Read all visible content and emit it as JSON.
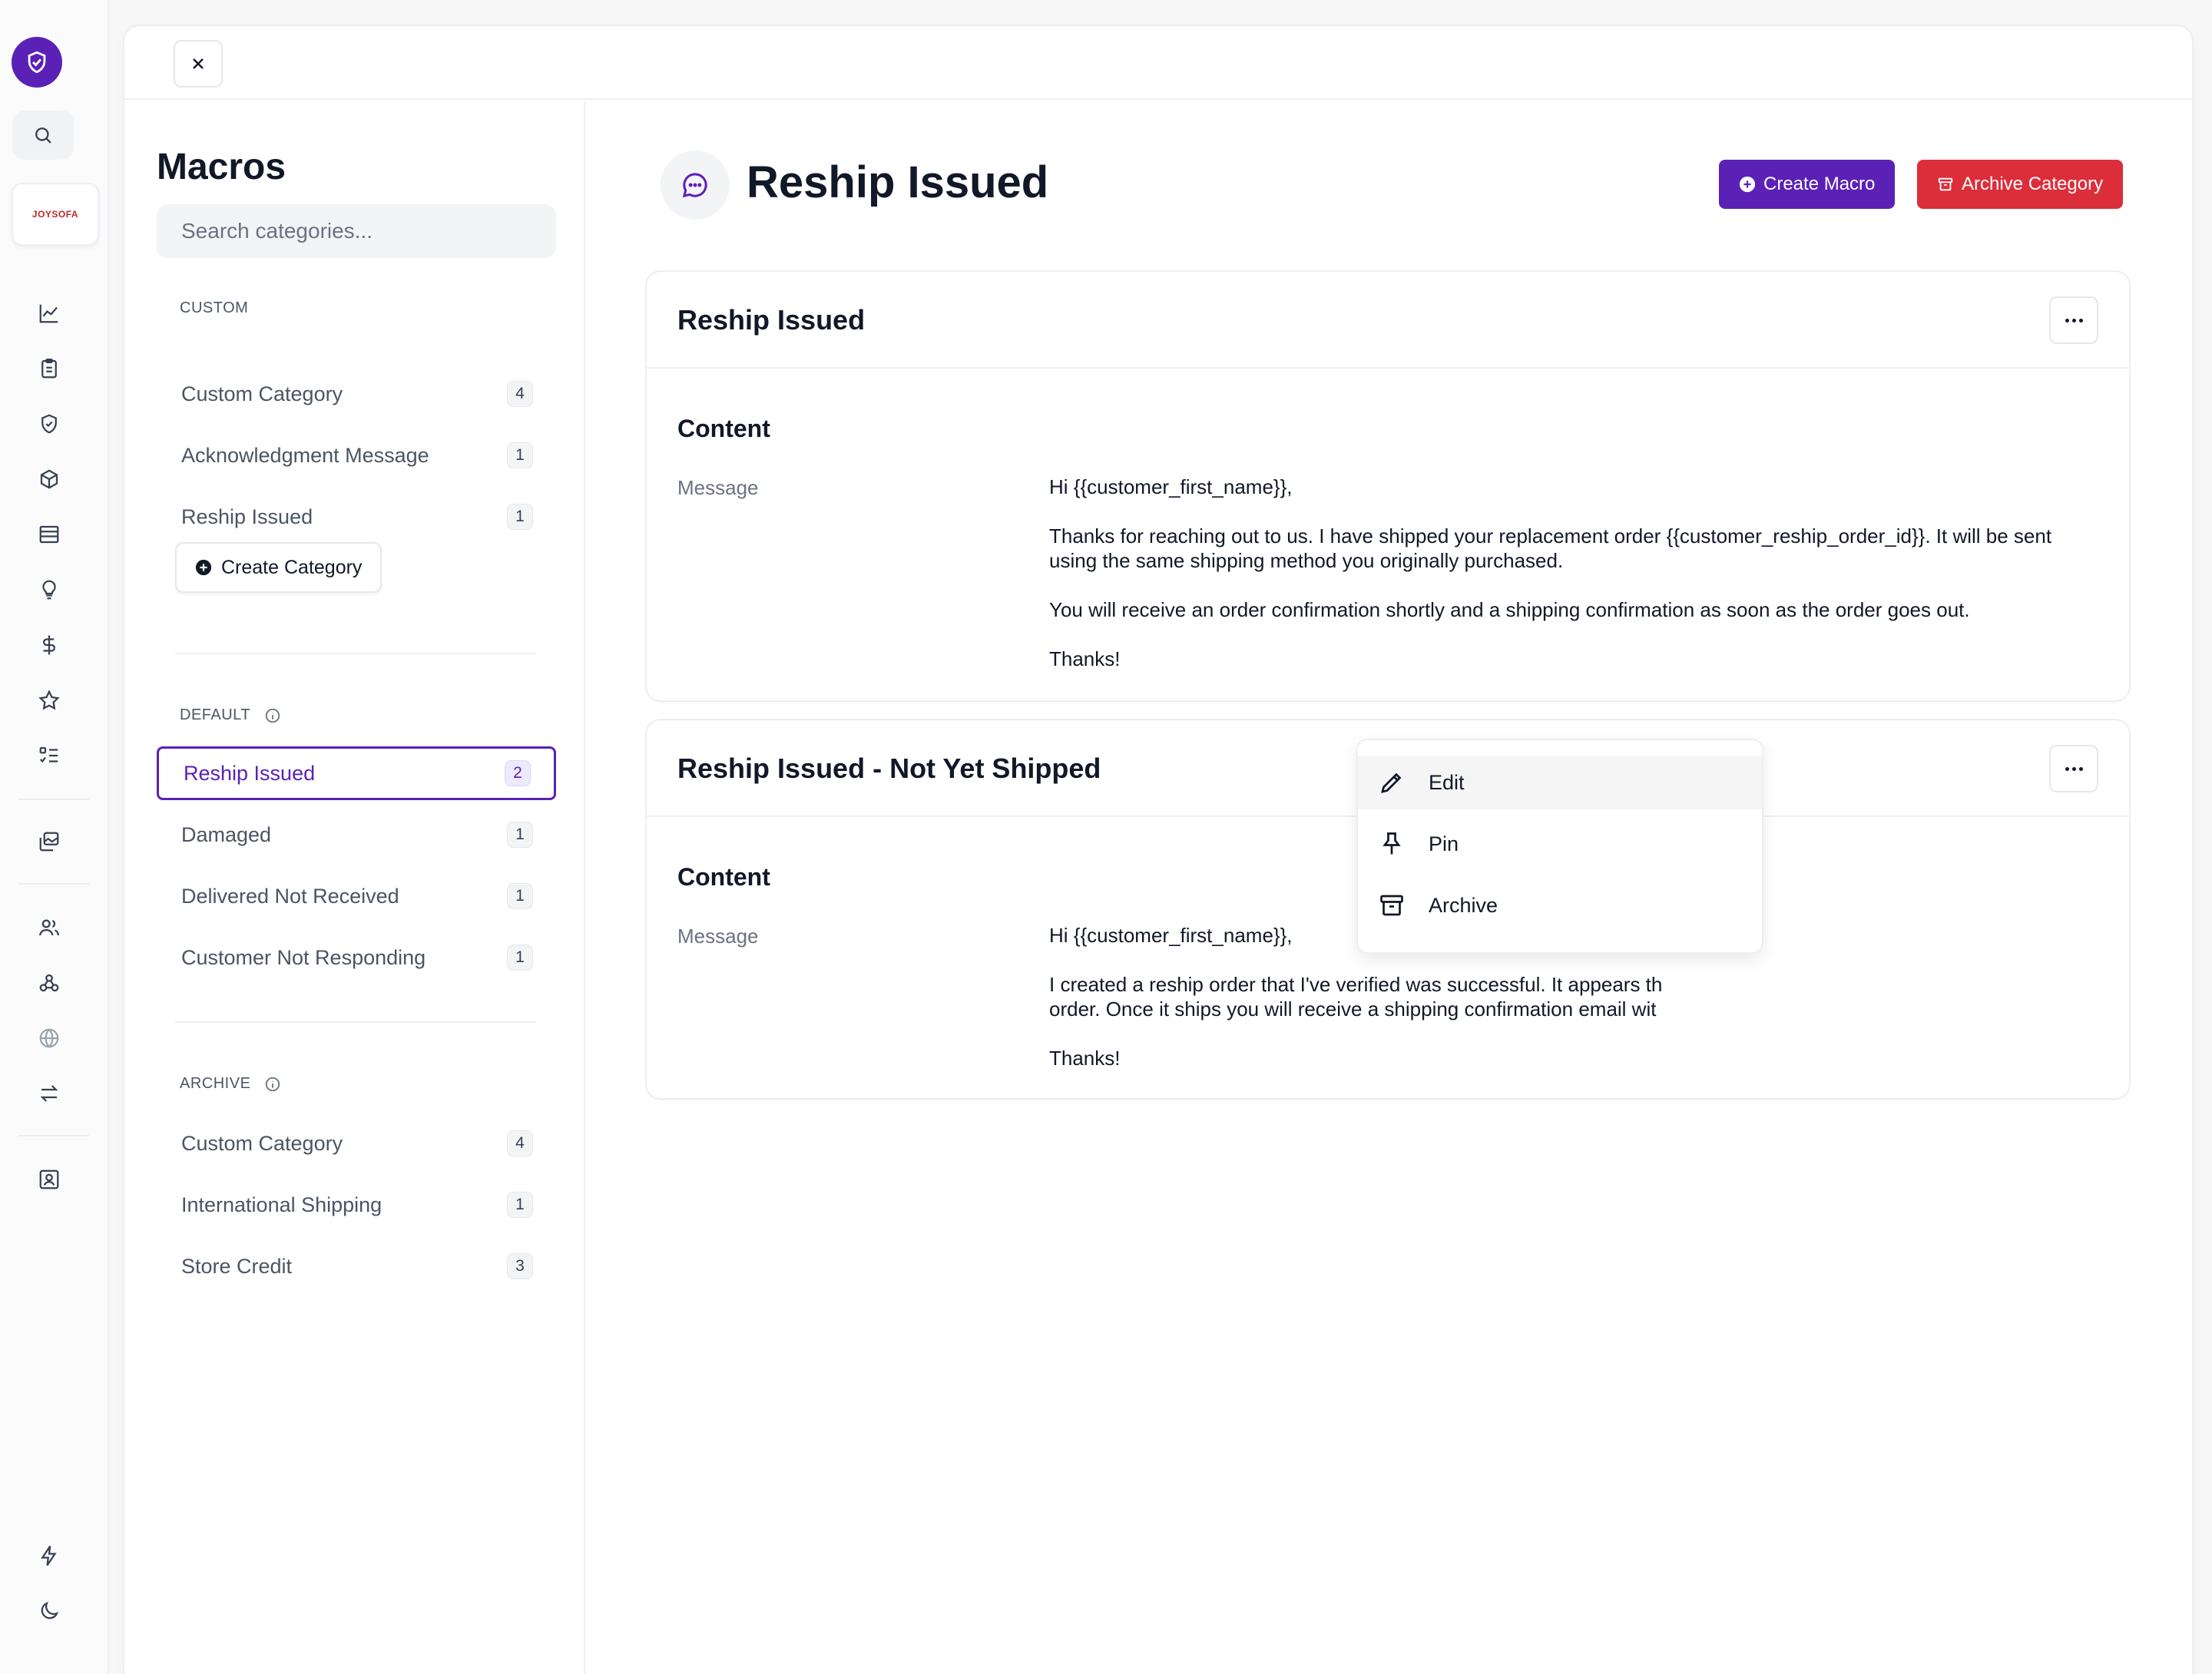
{
  "rail": {
    "brand_text": "JOYSOFA"
  },
  "macros": {
    "title": "Macros",
    "search_placeholder": "Search categories...",
    "custom": {
      "label": "CUSTOM",
      "items": [
        {
          "label": "Custom Category",
          "count": "4"
        },
        {
          "label": "Acknowledgment Message",
          "count": "1"
        },
        {
          "label": "Reship Issued",
          "count": "1"
        }
      ],
      "create_label": "Create Category"
    },
    "default": {
      "label": "DEFAULT",
      "items": [
        {
          "label": "Reship Issued",
          "count": "2"
        },
        {
          "label": "Damaged",
          "count": "1"
        },
        {
          "label": "Delivered Not Received",
          "count": "1"
        },
        {
          "label": "Customer Not Responding",
          "count": "1"
        }
      ]
    },
    "archive": {
      "label": "ARCHIVE",
      "items": [
        {
          "label": "Custom Category",
          "count": "4"
        },
        {
          "label": "International Shipping",
          "count": "1"
        },
        {
          "label": "Store Credit",
          "count": "3"
        }
      ]
    }
  },
  "header": {
    "title": "Reship Issued",
    "create_macro": "Create Macro",
    "archive_category": "Archive Category"
  },
  "cards": [
    {
      "title": "Reship Issued",
      "section": "Content",
      "label": "Message",
      "paragraphs": [
        "Hi {{customer_first_name}},",
        "Thanks for reaching out to us. I have shipped your replacement order {{customer_reship_order_id}}. It will be sent using the same shipping method you originally purchased.",
        "You will receive an order confirmation shortly and a shipping confirmation as soon as the order goes out.",
        "Thanks!"
      ]
    },
    {
      "title": "Reship Issued - Not Yet Shipped",
      "section": "Content",
      "label": "Message",
      "paragraphs": [
        "Hi {{customer_first_name}},",
        "I created a reship order that I've verified was successful. It appears th",
        "order. Once it ships you will receive a shipping confirmation email wit",
        "Thanks!"
      ]
    }
  ],
  "menu": {
    "items": [
      "Edit",
      "Pin",
      "Archive"
    ]
  }
}
